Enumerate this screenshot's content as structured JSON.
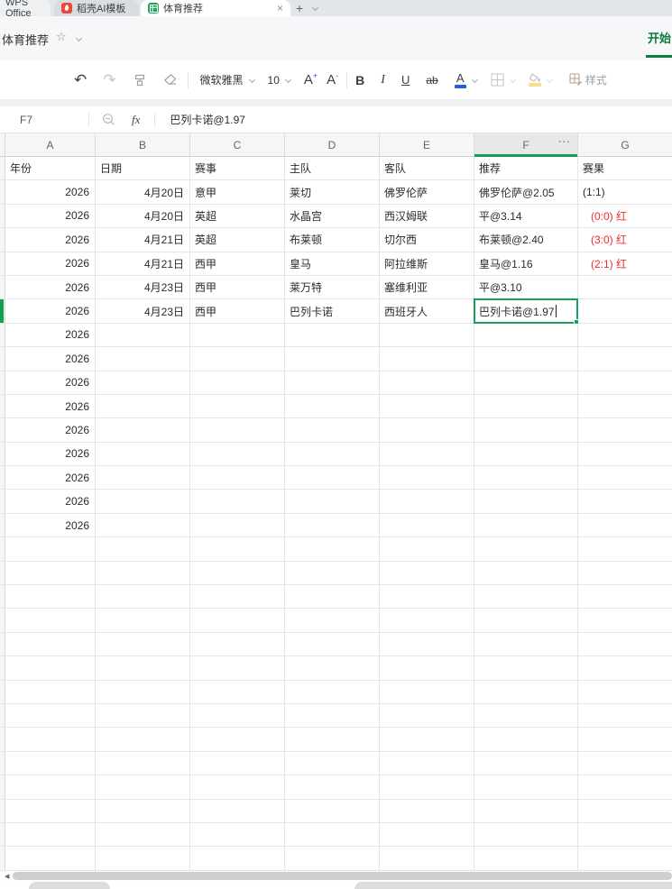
{
  "browser": {
    "tab_wps": "WPS Office",
    "tab_docer": "稻壳AI模板",
    "tab_doc": "体育推荐"
  },
  "titlebar": {
    "doc_title": "体育推荐",
    "home_menu": "开始"
  },
  "toolbar": {
    "font_name": "微软雅黑",
    "font_size": "10",
    "bold": "B",
    "italic": "I",
    "underline": "U",
    "strikethrough": "ab",
    "font_color_letter": "A",
    "grow_letter": "A",
    "shrink_letter": "A",
    "grow_mark": "+",
    "shrink_mark": "-",
    "styles_label": "样式"
  },
  "formula_bar": {
    "cell_ref": "F7",
    "fx_label": "fx",
    "value": "巴列卡诺@1.97"
  },
  "icons": {
    "undo": "↶",
    "redo": "↷",
    "close": "×",
    "new_tab": "+",
    "star": "☆",
    "ellipsis": "···",
    "scroll_left": "◀"
  },
  "sheet": {
    "column_letters": [
      "A",
      "B",
      "C",
      "D",
      "E",
      "F",
      "G"
    ],
    "active_column": "F",
    "active_cell": {
      "ref": "F7",
      "value": "巴列卡诺@1.97"
    },
    "empty_row_count": 14,
    "rows": [
      {
        "a": "年份",
        "b": "日期",
        "c": "赛事",
        "d": "主队",
        "e": "客队",
        "f": "推荐",
        "g": "赛果",
        "header": true
      },
      {
        "a": "2026",
        "b": "4月20日",
        "c": "意甲",
        "d": "莱切",
        "e": "佛罗伦萨",
        "f": "佛罗伦萨@2.05",
        "g": "(1:1)"
      },
      {
        "a": "2026",
        "b": "4月20日",
        "c": "英超",
        "d": "水晶宫",
        "e": "西汉姆联",
        "f": "平@3.14",
        "g": "(0:0) 红",
        "g_red": true
      },
      {
        "a": "2026",
        "b": "4月21日",
        "c": "英超",
        "d": "布莱顿",
        "e": "切尔西",
        "f": "布莱顿@2.40",
        "g": "(3:0) 红",
        "g_red": true
      },
      {
        "a": "2026",
        "b": "4月21日",
        "c": "西甲",
        "d": "皇马",
        "e": "阿拉维斯",
        "f": "皇马@1.16",
        "g": "(2:1) 红",
        "g_red": true
      },
      {
        "a": "2026",
        "b": "4月23日",
        "c": "西甲",
        "d": "莱万特",
        "e": "塞维利亚",
        "f": "平@3.10",
        "g": ""
      },
      {
        "a": "2026",
        "b": "4月23日",
        "c": "西甲",
        "d": "巴列卡诺",
        "e": "西班牙人",
        "f": "巴列卡诺@1.97",
        "g": "",
        "active_f": true
      },
      {
        "a": "2026"
      },
      {
        "a": "2026"
      },
      {
        "a": "2026"
      },
      {
        "a": "2026"
      },
      {
        "a": "2026"
      },
      {
        "a": "2026"
      },
      {
        "a": "2026"
      },
      {
        "a": "2026"
      },
      {
        "a": "2026"
      }
    ]
  },
  "colors": {
    "accent_green": "#12a050",
    "menu_green": "#0d7a3f",
    "result_red": "#f12b2b",
    "font_color_bar": "#2e5bd7",
    "fill_color_bar": "#f2e185"
  }
}
